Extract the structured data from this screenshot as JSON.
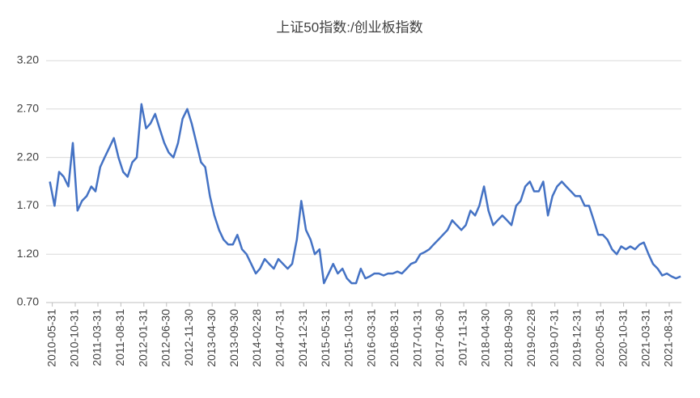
{
  "chart_data": {
    "type": "line",
    "title": "上证50指数:/创业板指数",
    "x": [
      "2010-05",
      "2010-06",
      "2010-07",
      "2010-08",
      "2010-09",
      "2010-10",
      "2010-11",
      "2010-12",
      "2011-01",
      "2011-02",
      "2011-03",
      "2011-04",
      "2011-05",
      "2011-06",
      "2011-07",
      "2011-08",
      "2011-09",
      "2011-10",
      "2011-11",
      "2011-12",
      "2012-01",
      "2012-02",
      "2012-03",
      "2012-04",
      "2012-05",
      "2012-06",
      "2012-07",
      "2012-08",
      "2012-09",
      "2012-10",
      "2012-11",
      "2012-12",
      "2013-01",
      "2013-02",
      "2013-03",
      "2013-04",
      "2013-05",
      "2013-06",
      "2013-07",
      "2013-08",
      "2013-09",
      "2013-10",
      "2013-11",
      "2013-12",
      "2014-01",
      "2014-02",
      "2014-03",
      "2014-04",
      "2014-05",
      "2014-06",
      "2014-07",
      "2014-08",
      "2014-09",
      "2014-10",
      "2014-11",
      "2014-12",
      "2015-01",
      "2015-02",
      "2015-03",
      "2015-04",
      "2015-05",
      "2015-06",
      "2015-07",
      "2015-08",
      "2015-09",
      "2015-10",
      "2015-11",
      "2015-12",
      "2016-01",
      "2016-02",
      "2016-03",
      "2016-04",
      "2016-05",
      "2016-06",
      "2016-07",
      "2016-08",
      "2016-09",
      "2016-10",
      "2016-11",
      "2016-12",
      "2017-01",
      "2017-02",
      "2017-03",
      "2017-04",
      "2017-05",
      "2017-06",
      "2017-07",
      "2017-08",
      "2017-09",
      "2017-10",
      "2017-11",
      "2017-12",
      "2018-01",
      "2018-02",
      "2018-03",
      "2018-04",
      "2018-05",
      "2018-06",
      "2018-07",
      "2018-08",
      "2018-09",
      "2018-10",
      "2018-11",
      "2018-12",
      "2019-01",
      "2019-02",
      "2019-03",
      "2019-04",
      "2019-05",
      "2019-06",
      "2019-07",
      "2019-08",
      "2019-09",
      "2019-10",
      "2019-11",
      "2019-12",
      "2020-01",
      "2020-02",
      "2020-03",
      "2020-04",
      "2020-05",
      "2020-06",
      "2020-07",
      "2020-08",
      "2020-09",
      "2020-10",
      "2020-11",
      "2020-12",
      "2021-01",
      "2021-02",
      "2021-03",
      "2021-04",
      "2021-05",
      "2021-06",
      "2021-07",
      "2021-08",
      "2021-09",
      "2021-10",
      "2021-11"
    ],
    "series": [
      {
        "name": "上证50指数:/创业板指数",
        "color": "#4472c4",
        "values": [
          1.95,
          1.7,
          2.05,
          2.0,
          1.9,
          2.35,
          1.65,
          1.75,
          1.8,
          1.9,
          1.85,
          2.1,
          2.2,
          2.3,
          2.4,
          2.2,
          2.05,
          2.0,
          2.15,
          2.2,
          2.75,
          2.5,
          2.55,
          2.65,
          2.5,
          2.35,
          2.25,
          2.2,
          2.35,
          2.6,
          2.7,
          2.55,
          2.35,
          2.15,
          2.1,
          1.8,
          1.6,
          1.45,
          1.35,
          1.3,
          1.3,
          1.4,
          1.25,
          1.2,
          1.1,
          1.0,
          1.05,
          1.15,
          1.1,
          1.05,
          1.15,
          1.1,
          1.05,
          1.1,
          1.35,
          1.75,
          1.45,
          1.35,
          1.2,
          1.25,
          0.9,
          1.0,
          1.1,
          1.0,
          1.05,
          0.95,
          0.9,
          0.9,
          1.05,
          0.95,
          0.97,
          1.0,
          1.0,
          0.98,
          1.0,
          1.0,
          1.02,
          1.0,
          1.05,
          1.1,
          1.12,
          1.2,
          1.22,
          1.25,
          1.3,
          1.35,
          1.4,
          1.45,
          1.55,
          1.5,
          1.45,
          1.5,
          1.65,
          1.6,
          1.7,
          1.9,
          1.65,
          1.5,
          1.55,
          1.6,
          1.55,
          1.5,
          1.7,
          1.75,
          1.9,
          1.95,
          1.85,
          1.85,
          1.95,
          1.6,
          1.8,
          1.9,
          1.95,
          1.9,
          1.85,
          1.8,
          1.8,
          1.7,
          1.7,
          1.55,
          1.4,
          1.4,
          1.35,
          1.25,
          1.2,
          1.28,
          1.25,
          1.28,
          1.25,
          1.3,
          1.32,
          1.2,
          1.1,
          1.05,
          0.98,
          1.0,
          0.97,
          0.95,
          0.97
        ]
      }
    ],
    "xlim": [
      "2010-04-20",
      "2021-11-20"
    ],
    "xticks": [
      "2010-05-31",
      "2010-10-31",
      "2011-03-31",
      "2011-08-31",
      "2012-01-31",
      "2012-06-30",
      "2012-11-30",
      "2013-04-30",
      "2013-09-30",
      "2014-02-28",
      "2014-07-31",
      "2014-12-31",
      "2015-05-31",
      "2015-10-31",
      "2016-03-31",
      "2016-08-31",
      "2017-01-31",
      "2017-06-30",
      "2017-11-31",
      "2018-04-30",
      "2018-09-30",
      "2019-02-28",
      "2019-07-31",
      "2019-12-31",
      "2020-05-31",
      "2020-10-31",
      "2021-03-31",
      "2021-08-31"
    ],
    "ylim": [
      0.7,
      3.2
    ],
    "yticks": [
      {
        "value": 0.7,
        "label": "0.70"
      },
      {
        "value": 1.2,
        "label": "1.20"
      },
      {
        "value": 1.7,
        "label": "1.70"
      },
      {
        "value": 2.2,
        "label": "2.20"
      },
      {
        "value": 2.7,
        "label": "2.70"
      },
      {
        "value": 3.2,
        "label": "3.20"
      }
    ],
    "grid": true
  }
}
